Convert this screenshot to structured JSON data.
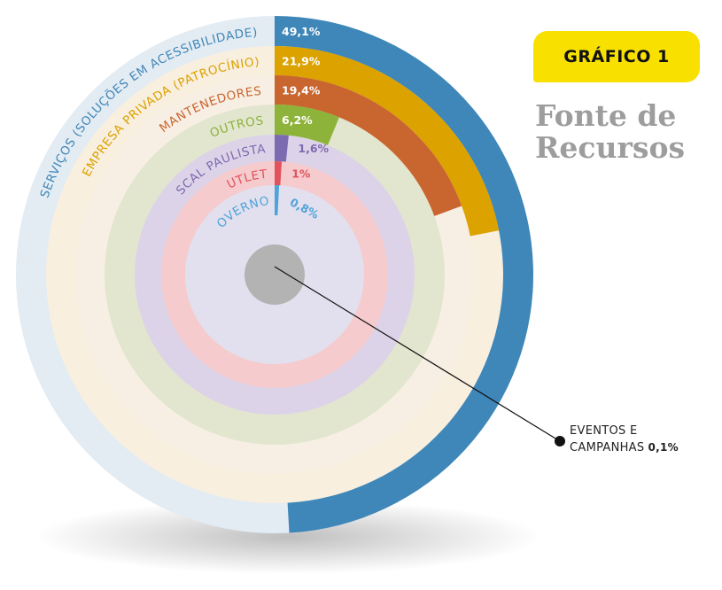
{
  "header": {
    "badge": "GRÁFICO 1",
    "title_line1": "Fonte de",
    "title_line2": "Recursos"
  },
  "chart_data": {
    "type": "radial-bar",
    "series": [
      {
        "name": "SERVIÇOS (SOLUÇÕES EM ACESSIBILIDADE)",
        "value": 49.1,
        "label": "49,1%",
        "color": "#3f87b8",
        "track": "#e3ebf3",
        "labelColor": "#3f87b8"
      },
      {
        "name": "EMPRESA PRIVADA (PATROCÍNIO)",
        "value": 21.9,
        "label": "21,9%",
        "color": "#dba200",
        "track": "#f9efdf",
        "labelColor": "#dba200"
      },
      {
        "name": "MANTENEDORES",
        "value": 19.4,
        "label": "19,4%",
        "color": "#c9652e",
        "track": "#f8efe4",
        "labelColor": "#c9652e"
      },
      {
        "name": "OUTROS",
        "value": 6.2,
        "label": "6,2%",
        "color": "#8db33a",
        "track": "#e2e6ce",
        "labelColor": "#8db33a"
      },
      {
        "name": "NOTA FISCAL PAULISTA",
        "value": 1.6,
        "label": "1,6%",
        "color": "#7c6bb0",
        "track": "#ddd3e8",
        "labelColor": "#7c6bb0"
      },
      {
        "name": "OUTLET",
        "value": 1.0,
        "label": "1%",
        "color": "#e2525c",
        "track": "#f5cbcd",
        "labelColor": "#e2525c"
      },
      {
        "name": "GOVERNO",
        "value": 0.8,
        "label": "0,8%",
        "color": "#4fa3d9",
        "track": "#e2e0ee",
        "labelColor": "#4fa3d9"
      },
      {
        "name": "EVENTOS E CAMPANHAS",
        "value": 0.1,
        "label": "0,1%",
        "color": "#9a9a9a",
        "track": "#b3b3b3",
        "labelColor": "#222222"
      }
    ]
  },
  "callout": {
    "line1": "EVENTOS E",
    "line2": "CAMPANHAS",
    "value": "0,1%"
  }
}
